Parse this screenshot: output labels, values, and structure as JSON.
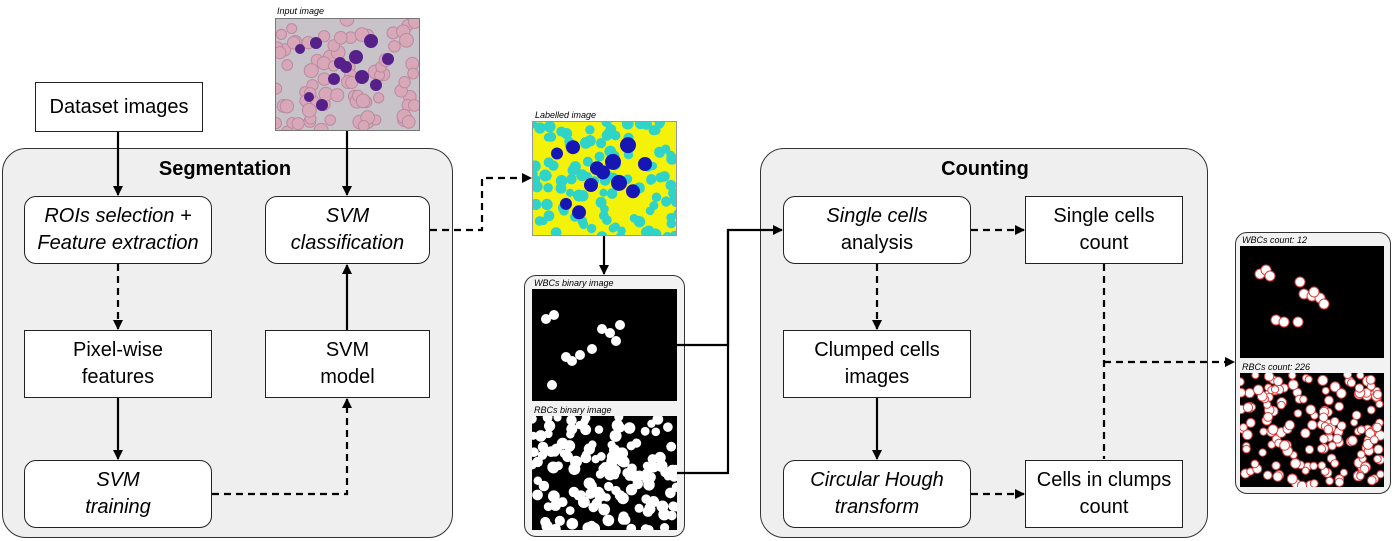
{
  "segmentation": {
    "title": "Segmentation",
    "dataset_images": "Dataset images",
    "rois": "ROIs selection +\nFeature extraction",
    "pixel_features": "Pixel-wise\nfeatures",
    "svm_training": "SVM\ntraining",
    "svm_model": "SVM\nmodel",
    "svm_classification": "SVM\nclassification"
  },
  "input_image": {
    "label": "Input image"
  },
  "labelled_image": {
    "label": "Labelled image"
  },
  "binary_images": {
    "wbc_label": "WBCs binary image",
    "rbc_label": "RBCs binary image"
  },
  "counting": {
    "title": "Counting",
    "single_cells_analysis_italic": "Single cells",
    "single_cells_analysis_rest": "analysis",
    "single_cells_count": "Single cells\ncount",
    "clumped_cells_images": "Clumped cells\nimages",
    "circular_hough": "Circular Hough\ntransform",
    "cells_in_clumps": "Cells in clumps\ncount"
  },
  "results": {
    "wbc_count": "WBCs count: 12",
    "rbc_count": "RBCs count: 226"
  },
  "colors": {
    "panel_bg": "#efefef",
    "labelled_bg": "#f5f20a",
    "rbc_cyan": "#2fd3c8",
    "wbc_blue": "#1616b4",
    "smear_bg": "#c8c2c9",
    "wbc_purple": "#55208a"
  }
}
